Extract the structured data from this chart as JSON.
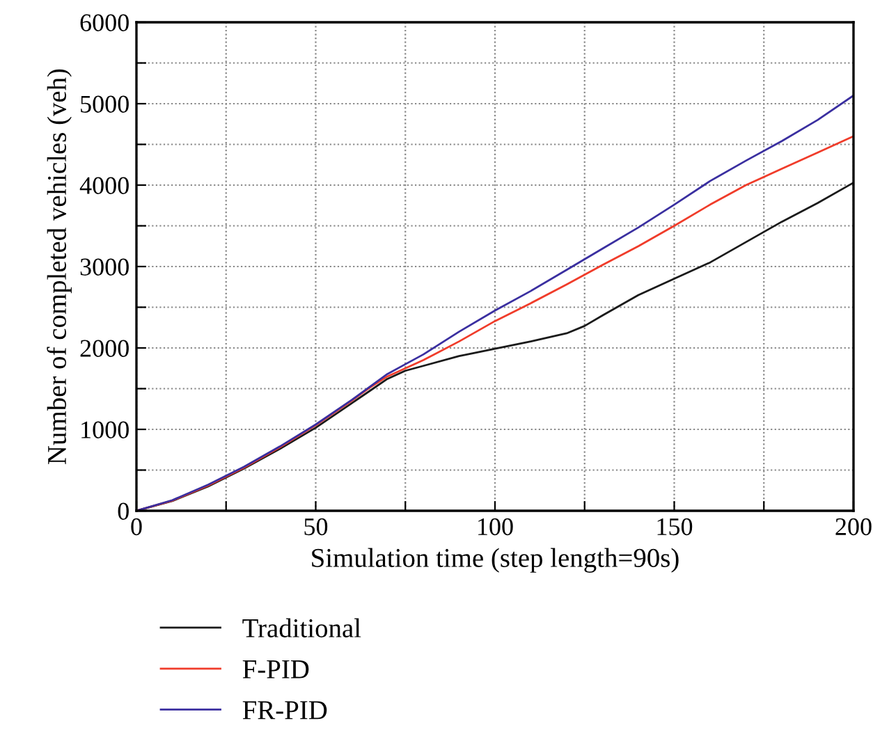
{
  "chart_data": {
    "type": "line",
    "xlabel": "Simulation time (step length=90s)",
    "ylabel": "Number of completed vehicles (veh)",
    "x": [
      0,
      10,
      20,
      30,
      40,
      50,
      60,
      65,
      70,
      75,
      80,
      90,
      100,
      110,
      120,
      125,
      130,
      140,
      150,
      160,
      170,
      180,
      190,
      200
    ],
    "series": [
      {
        "name": "Traditional",
        "color": "#1a1a1a",
        "values": [
          0,
          120,
          300,
          520,
          760,
          1020,
          1320,
          1470,
          1620,
          1720,
          1780,
          1900,
          1990,
          2080,
          2180,
          2270,
          2400,
          2650,
          2850,
          3050,
          3300,
          3550,
          3780,
          4030
        ]
      },
      {
        "name": "F-PID",
        "color": "#f03c2a",
        "values": [
          0,
          125,
          310,
          530,
          780,
          1050,
          1350,
          1510,
          1650,
          1750,
          1850,
          2080,
          2330,
          2550,
          2780,
          2900,
          3020,
          3250,
          3500,
          3760,
          4000,
          4200,
          4400,
          4600
        ]
      },
      {
        "name": "FR-PID",
        "color": "#3a2fa0",
        "values": [
          0,
          130,
          320,
          540,
          790,
          1060,
          1360,
          1520,
          1680,
          1800,
          1920,
          2200,
          2460,
          2700,
          2960,
          3090,
          3220,
          3480,
          3760,
          4050,
          4300,
          4540,
          4800,
          5100
        ]
      }
    ],
    "xlim": [
      0,
      200
    ],
    "ylim": [
      0,
      6000
    ],
    "xticks": [
      0,
      {
        "value": 25,
        "label": null
      },
      50,
      {
        "value": 75,
        "label": null
      },
      100,
      {
        "value": 125,
        "label": null
      },
      150,
      {
        "value": 175,
        "label": null
      },
      200
    ],
    "yticks": [
      0,
      {
        "value": 500,
        "label": null
      },
      1000,
      {
        "value": 1500,
        "label": null
      },
      2000,
      {
        "value": 2500,
        "label": null
      },
      3000,
      {
        "value": 3500,
        "label": null
      },
      4000,
      {
        "value": 4500,
        "label": null
      },
      5000,
      {
        "value": 5500,
        "label": null
      },
      6000
    ],
    "grid": true,
    "legend": "bottom",
    "marker": "none",
    "line_style": "solid"
  }
}
